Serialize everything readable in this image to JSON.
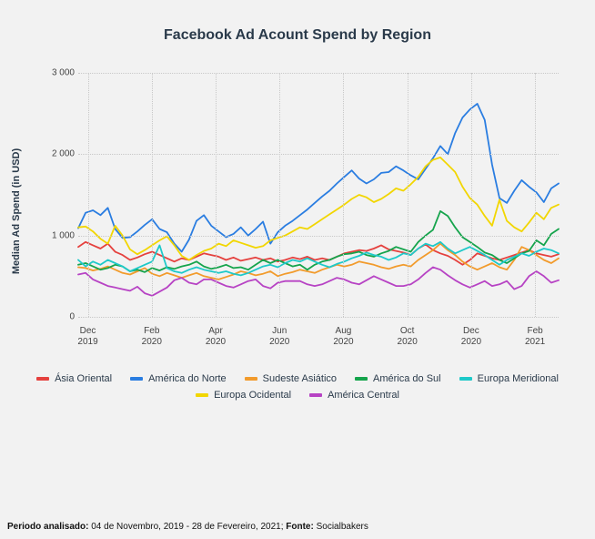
{
  "chart": {
    "type": "line",
    "title": "Facebook Ad Acount Spend by Region",
    "title_fontsize": 16,
    "title_color": "#2a3a4a",
    "y_axis_label": "Median Ad Spend (in USD)",
    "label_fontsize": 11,
    "background_color": "#f2f2f2",
    "grid_color": "#c8c8c8",
    "grid_style": "dotted",
    "ylim": [
      0,
      3000
    ],
    "ytick_step": 1000,
    "y_ticks": [
      "0",
      "1 000",
      "2 000",
      "3 000"
    ],
    "x_ticks": [
      {
        "pos": 0.02,
        "line1": "Dec",
        "line2": "2019"
      },
      {
        "pos": 0.153,
        "line1": "Feb",
        "line2": "2020"
      },
      {
        "pos": 0.286,
        "line1": "Apr",
        "line2": "2020"
      },
      {
        "pos": 0.419,
        "line1": "Jun",
        "line2": "2020"
      },
      {
        "pos": 0.552,
        "line1": "Aug",
        "line2": "2020"
      },
      {
        "pos": 0.685,
        "line1": "Oct",
        "line2": "2020"
      },
      {
        "pos": 0.818,
        "line1": "Dec",
        "line2": "2020"
      },
      {
        "pos": 0.951,
        "line1": "Feb",
        "line2": "2021"
      }
    ],
    "line_width": 1.8,
    "n_points": 66,
    "series": [
      {
        "name": "Ásia Oriental",
        "color": "#e5413e",
        "values": [
          860,
          920,
          880,
          840,
          900,
          800,
          760,
          700,
          730,
          770,
          800,
          760,
          720,
          680,
          720,
          700,
          740,
          780,
          760,
          740,
          700,
          730,
          690,
          710,
          730,
          700,
          720,
          680,
          700,
          730,
          710,
          740,
          700,
          720,
          700,
          740,
          780,
          800,
          820,
          810,
          840,
          880,
          830,
          810,
          790,
          760,
          840,
          890,
          820,
          780,
          750,
          700,
          640,
          700,
          780,
          750,
          720,
          700,
          730,
          760,
          790,
          820,
          780,
          760,
          740,
          770
        ]
      },
      {
        "name": "América do Norte",
        "color": "#2a7de1",
        "values": [
          1090,
          1280,
          1310,
          1250,
          1340,
          1080,
          970,
          980,
          1050,
          1130,
          1200,
          1080,
          1040,
          900,
          800,
          950,
          1180,
          1250,
          1120,
          1050,
          980,
          1020,
          1100,
          1000,
          1080,
          1170,
          900,
          1040,
          1120,
          1180,
          1250,
          1320,
          1400,
          1480,
          1550,
          1640,
          1720,
          1800,
          1700,
          1640,
          1690,
          1770,
          1780,
          1850,
          1800,
          1740,
          1690,
          1820,
          1950,
          2100,
          2000,
          2260,
          2450,
          2550,
          2620,
          2420,
          1870,
          1460,
          1400,
          1550,
          1680,
          1600,
          1530,
          1410,
          1580,
          1640
        ]
      },
      {
        "name": "Sudeste Asiático",
        "color": "#f29b2c",
        "values": [
          610,
          600,
          570,
          590,
          620,
          580,
          540,
          520,
          560,
          600,
          530,
          500,
          540,
          510,
          480,
          510,
          540,
          500,
          480,
          460,
          490,
          520,
          560,
          540,
          510,
          530,
          560,
          500,
          530,
          550,
          580,
          560,
          540,
          580,
          610,
          640,
          620,
          640,
          680,
          660,
          640,
          610,
          590,
          620,
          640,
          620,
          700,
          760,
          820,
          900,
          820,
          760,
          680,
          620,
          580,
          620,
          660,
          610,
          580,
          700,
          860,
          820,
          760,
          700,
          660,
          720
        ]
      },
      {
        "name": "América do Sul",
        "color": "#15a44c",
        "values": [
          640,
          660,
          620,
          580,
          600,
          640,
          620,
          560,
          580,
          550,
          600,
          570,
          610,
          590,
          620,
          640,
          680,
          620,
          590,
          610,
          640,
          600,
          610,
          580,
          640,
          700,
          660,
          700,
          660,
          620,
          640,
          580,
          640,
          680,
          700,
          740,
          770,
          780,
          800,
          760,
          740,
          780,
          810,
          860,
          830,
          800,
          920,
          1000,
          1070,
          1300,
          1240,
          1100,
          980,
          920,
          860,
          790,
          760,
          700,
          660,
          720,
          780,
          810,
          940,
          880,
          1020,
          1080
        ]
      },
      {
        "name": "Europa Meridional",
        "color": "#1ec9c9",
        "values": [
          700,
          620,
          680,
          640,
          700,
          660,
          620,
          560,
          600,
          640,
          680,
          880,
          600,
          560,
          540,
          580,
          610,
          580,
          560,
          540,
          560,
          530,
          510,
          540,
          580,
          620,
          640,
          610,
          660,
          700,
          680,
          720,
          680,
          640,
          610,
          650,
          680,
          720,
          750,
          790,
          760,
          740,
          700,
          730,
          780,
          760,
          840,
          900,
          870,
          920,
          840,
          780,
          820,
          860,
          810,
          760,
          700,
          640,
          700,
          740,
          780,
          750,
          800,
          840,
          820,
          780
        ]
      },
      {
        "name": "Europa Ocidental",
        "color": "#f2d600",
        "values": [
          1100,
          1110,
          1050,
          960,
          900,
          1120,
          1000,
          830,
          770,
          820,
          880,
          940,
          990,
          880,
          750,
          700,
          760,
          810,
          840,
          900,
          870,
          940,
          910,
          880,
          850,
          870,
          940,
          970,
          1000,
          1050,
          1100,
          1080,
          1140,
          1200,
          1260,
          1320,
          1380,
          1450,
          1500,
          1470,
          1410,
          1450,
          1510,
          1580,
          1550,
          1630,
          1720,
          1850,
          1930,
          1960,
          1870,
          1780,
          1600,
          1460,
          1380,
          1240,
          1120,
          1440,
          1180,
          1100,
          1050,
          1160,
          1280,
          1200,
          1340,
          1380
        ]
      },
      {
        "name": "América Central",
        "color": "#b743c4",
        "values": [
          520,
          540,
          460,
          420,
          380,
          360,
          340,
          320,
          370,
          290,
          260,
          310,
          360,
          450,
          480,
          420,
          400,
          460,
          460,
          420,
          380,
          360,
          400,
          440,
          460,
          380,
          350,
          420,
          440,
          440,
          440,
          400,
          380,
          400,
          440,
          480,
          460,
          420,
          400,
          450,
          500,
          460,
          420,
          380,
          380,
          400,
          460,
          540,
          610,
          580,
          510,
          450,
          400,
          360,
          400,
          440,
          380,
          400,
          440,
          340,
          380,
          500,
          560,
          500,
          420,
          450
        ]
      }
    ]
  },
  "footer": {
    "label_period": "Periodo analisado:",
    "period_value": " 04 de Novembro, 2019 - 28 de Fevereiro, 2021; ",
    "label_source": "Fonte:",
    "source_value": " Socialbakers"
  }
}
